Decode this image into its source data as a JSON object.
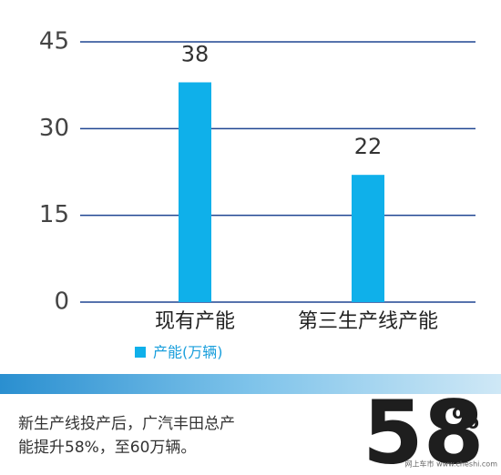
{
  "chart_data": {
    "type": "bar",
    "categories": [
      "现有产能",
      "第三生产线产能"
    ],
    "series": [
      {
        "name": "产能(万辆)",
        "color": "#0fb0ea",
        "values": [
          38,
          22
        ]
      }
    ],
    "ylim": [
      0,
      45
    ],
    "yticks": [
      0,
      15,
      30,
      45
    ],
    "grid": true,
    "legend": "bottom-left"
  },
  "footer": {
    "text_line1": "新生产线投产后，广汽丰田总产",
    "text_line2": "能提升58%，至60万辆。",
    "big_number": "58",
    "big_unit": "%",
    "watermark": "网上车市 www.cheshi.com"
  }
}
